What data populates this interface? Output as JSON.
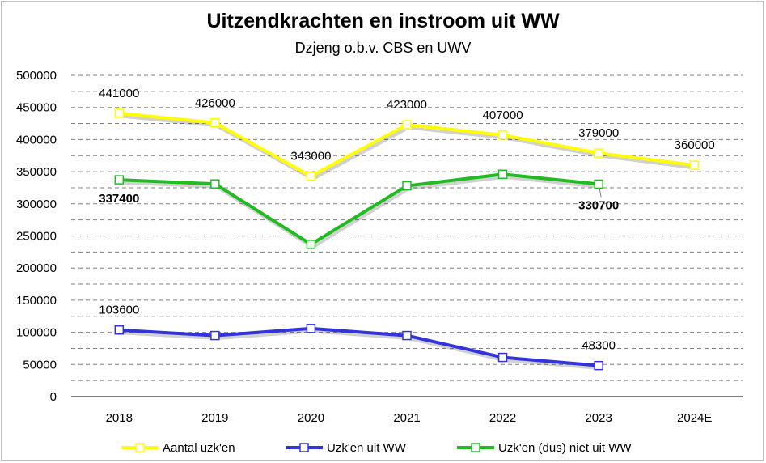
{
  "chart_data": {
    "type": "line",
    "title": "Uitzendkrachten en instroom uit WW",
    "subtitle": "Dzjeng o.b.v. CBS en UWV",
    "categories": [
      "2018",
      "2019",
      "2020",
      "2021",
      "2022",
      "2023",
      "2024E"
    ],
    "ylim": [
      0,
      500000
    ],
    "yticks": [
      0,
      50000,
      100000,
      150000,
      200000,
      250000,
      300000,
      350000,
      400000,
      450000,
      500000
    ],
    "grid": "dashed-horizontal",
    "legend": "bottom",
    "series": [
      {
        "name": "Aantal uzk'en",
        "color": "#FFFF00",
        "values": [
          441000,
          426000,
          343000,
          423000,
          407000,
          379000,
          360000
        ],
        "labels": [
          "441000",
          "426000",
          "343000",
          "423000",
          "407000",
          "379000",
          "360000"
        ],
        "label_color": "#000000",
        "label_bold": false
      },
      {
        "name": "Uzk'en uit WW",
        "color": "#3333DD",
        "values": [
          103600,
          95000,
          106000,
          95000,
          61000,
          48300,
          null
        ],
        "labels": [
          "103600",
          "",
          "",
          "",
          "",
          "48300",
          ""
        ],
        "label_color": "#000000",
        "label_bold": false
      },
      {
        "name": "Uzk'en (dus) niet uit WW",
        "color": "#22BB22",
        "values": [
          337400,
          331000,
          237000,
          328000,
          346000,
          330700,
          null
        ],
        "labels": [
          "337400",
          "",
          "",
          "",
          "",
          "330700",
          ""
        ],
        "label_color": "#22BB22",
        "label_bold": true
      }
    ]
  }
}
